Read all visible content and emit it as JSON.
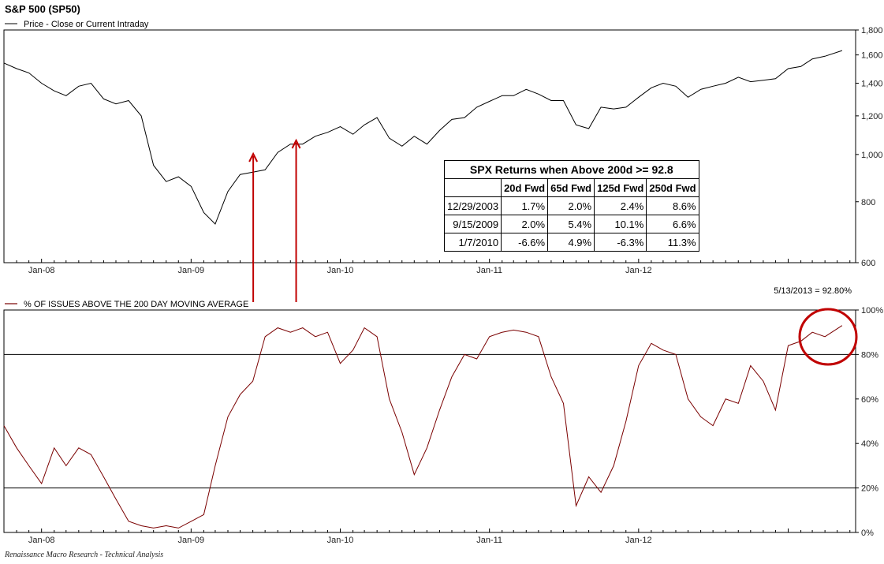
{
  "chart_data": [
    {
      "type": "line",
      "title": "S&P 500 (SP50)",
      "legend": "Price - Close or Current Intraday",
      "y_scale": "log",
      "ylim": [
        600,
        1800
      ],
      "yticks": [
        "1,800",
        "1,600",
        "1,400",
        "1,200",
        "1,000",
        "800",
        "600"
      ],
      "ytick_values": [
        1800,
        1600,
        1400,
        1200,
        1000,
        800,
        600
      ],
      "x_tick_labels": [
        "Jan-08",
        "Jan-09",
        "Jan-10",
        "Jan-11",
        "Jan-12"
      ],
      "x_range": [
        "2007-10",
        "2013-05"
      ],
      "series": [
        {
          "color": "#000000",
          "x": [
            "2007-10-01",
            "2007-11-01",
            "2007-12-01",
            "2008-01-01",
            "2008-02-01",
            "2008-03-01",
            "2008-04-01",
            "2008-05-01",
            "2008-06-01",
            "2008-07-01",
            "2008-08-01",
            "2008-09-01",
            "2008-10-01",
            "2008-11-01",
            "2008-12-01",
            "2009-01-01",
            "2009-02-01",
            "2009-03-01",
            "2009-04-01",
            "2009-05-01",
            "2009-06-01",
            "2009-07-01",
            "2009-08-01",
            "2009-09-01",
            "2009-10-01",
            "2009-11-01",
            "2009-12-01",
            "2010-01-01",
            "2010-02-01",
            "2010-03-01",
            "2010-04-01",
            "2010-05-01",
            "2010-06-01",
            "2010-07-01",
            "2010-08-01",
            "2010-09-01",
            "2010-10-01",
            "2010-11-01",
            "2010-12-01",
            "2011-01-01",
            "2011-02-01",
            "2011-03-01",
            "2011-04-01",
            "2011-05-01",
            "2011-06-01",
            "2011-07-01",
            "2011-08-01",
            "2011-09-01",
            "2011-10-01",
            "2011-11-01",
            "2011-12-01",
            "2012-01-01",
            "2012-02-01",
            "2012-03-01",
            "2012-04-01",
            "2012-05-01",
            "2012-06-01",
            "2012-07-01",
            "2012-08-01",
            "2012-09-01",
            "2012-10-01",
            "2012-11-01",
            "2012-12-01",
            "2013-01-01",
            "2013-02-01",
            "2013-03-01",
            "2013-04-01",
            "2013-05-13"
          ],
          "values": [
            1540,
            1500,
            1470,
            1400,
            1350,
            1320,
            1380,
            1400,
            1300,
            1270,
            1290,
            1200,
            950,
            880,
            900,
            860,
            760,
            720,
            840,
            910,
            920,
            930,
            1010,
            1050,
            1050,
            1090,
            1110,
            1140,
            1100,
            1150,
            1190,
            1080,
            1040,
            1090,
            1050,
            1120,
            1180,
            1190,
            1250,
            1285,
            1320,
            1320,
            1360,
            1330,
            1290,
            1290,
            1150,
            1130,
            1250,
            1240,
            1250,
            1310,
            1370,
            1400,
            1380,
            1310,
            1360,
            1380,
            1400,
            1440,
            1410,
            1420,
            1430,
            1500,
            1515,
            1570,
            1590,
            1633
          ]
        }
      ]
    },
    {
      "type": "line",
      "title": "% OF ISSUES ABOVE THE 200 DAY MOVING AVERAGE",
      "ylim": [
        0,
        100
      ],
      "yticks": [
        "100%",
        "80%",
        "60%",
        "40%",
        "20%",
        "0%"
      ],
      "ytick_values": [
        100,
        80,
        60,
        40,
        20,
        0
      ],
      "reference_lines": [
        80,
        20
      ],
      "annotation": "5/13/2013 = 92.80%",
      "x_tick_labels": [
        "Jan-08",
        "Jan-09",
        "Jan-10",
        "Jan-11",
        "Jan-12"
      ],
      "x_range": [
        "2007-10",
        "2013-05"
      ],
      "series": [
        {
          "color": "#7a0000",
          "x": [
            "2007-10-01",
            "2007-11-01",
            "2007-12-01",
            "2008-01-01",
            "2008-02-01",
            "2008-03-01",
            "2008-04-01",
            "2008-05-01",
            "2008-06-01",
            "2008-07-01",
            "2008-08-01",
            "2008-09-01",
            "2008-10-01",
            "2008-11-01",
            "2008-12-01",
            "2009-01-01",
            "2009-02-01",
            "2009-03-01",
            "2009-04-01",
            "2009-05-01",
            "2009-06-01",
            "2009-07-01",
            "2009-08-01",
            "2009-09-01",
            "2009-10-01",
            "2009-11-01",
            "2009-12-01",
            "2010-01-01",
            "2010-02-01",
            "2010-03-01",
            "2010-04-01",
            "2010-05-01",
            "2010-06-01",
            "2010-07-01",
            "2010-08-01",
            "2010-09-01",
            "2010-10-01",
            "2010-11-01",
            "2010-12-01",
            "2011-01-01",
            "2011-02-01",
            "2011-03-01",
            "2011-04-01",
            "2011-05-01",
            "2011-06-01",
            "2011-07-01",
            "2011-08-01",
            "2011-09-01",
            "2011-10-01",
            "2011-11-01",
            "2011-12-01",
            "2012-01-01",
            "2012-02-01",
            "2012-03-01",
            "2012-04-01",
            "2012-05-01",
            "2012-06-01",
            "2012-07-01",
            "2012-08-01",
            "2012-09-01",
            "2012-10-01",
            "2012-11-01",
            "2012-12-01",
            "2013-01-01",
            "2013-02-01",
            "2013-03-01",
            "2013-04-01",
            "2013-05-13"
          ],
          "values": [
            48,
            38,
            30,
            22,
            38,
            30,
            38,
            35,
            25,
            15,
            5,
            3,
            2,
            3,
            2,
            5,
            8,
            30,
            52,
            62,
            68,
            88,
            92,
            90,
            92,
            88,
            90,
            76,
            82,
            92,
            88,
            60,
            45,
            26,
            38,
            55,
            70,
            80,
            78,
            88,
            90,
            91,
            90,
            88,
            70,
            58,
            12,
            25,
            18,
            30,
            50,
            75,
            85,
            82,
            80,
            60,
            52,
            48,
            60,
            58,
            75,
            68,
            55,
            84,
            86,
            90,
            88,
            93
          ]
        }
      ]
    }
  ],
  "arrows": {
    "color": "#c00000"
  },
  "highlight_circle": {
    "color": "#c00000"
  },
  "returns_table": {
    "caption": "SPX Returns when Above 200d >= 92.8",
    "headers": [
      "",
      "20d Fwd",
      "65d Fwd",
      "125d Fwd",
      "250d Fwd"
    ],
    "rows": [
      [
        "12/29/2003",
        "1.7%",
        "2.0%",
        "2.4%",
        "8.6%"
      ],
      [
        "9/15/2009",
        "2.0%",
        "5.4%",
        "10.1%",
        "6.6%"
      ],
      [
        "1/7/2010",
        "-6.6%",
        "4.9%",
        "-6.3%",
        "11.3%"
      ]
    ]
  },
  "footer": "Renaissance Macro Research - Technical Analysis"
}
